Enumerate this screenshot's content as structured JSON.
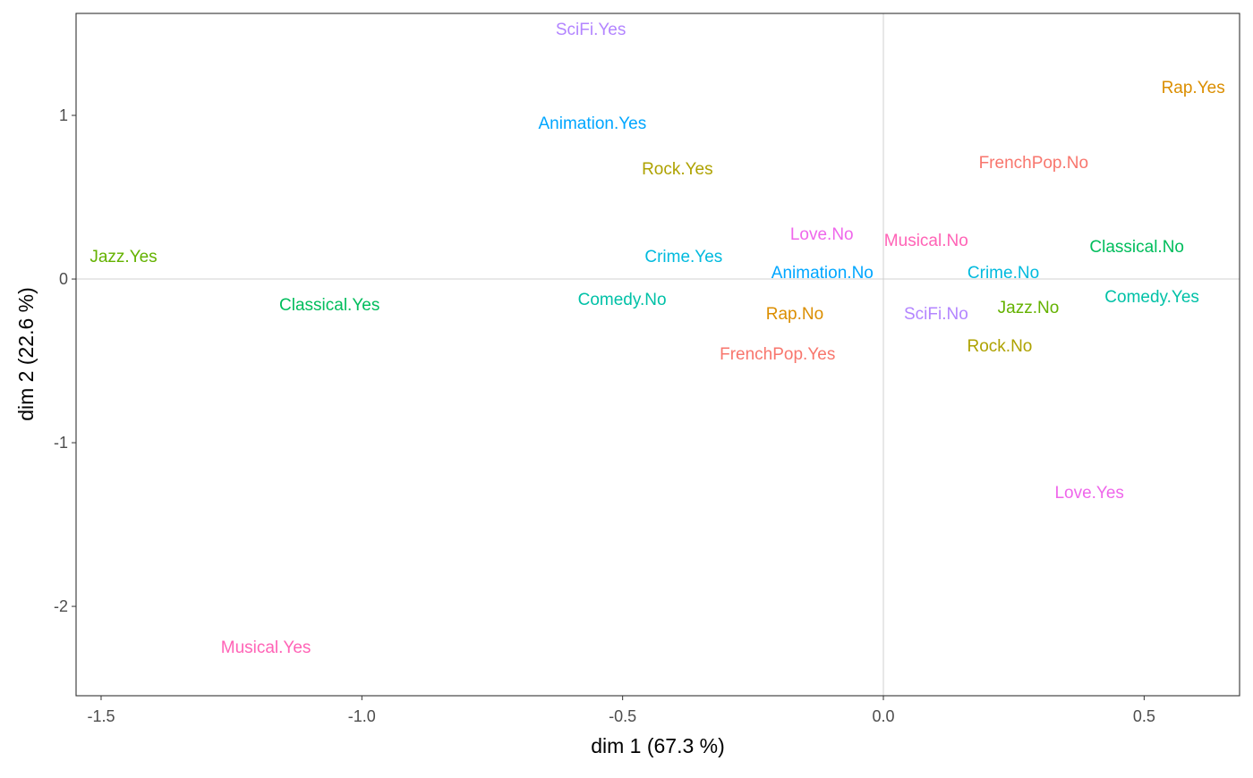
{
  "chart_data": {
    "type": "scatter",
    "title": "",
    "xlabel": "dim 1 (67.3 %)",
    "ylabel": "dim 2 (22.6 %)",
    "xlim": [
      -1.548,
      0.683
    ],
    "ylim": [
      -2.546,
      1.623
    ],
    "xticks": [
      -1.5,
      -1.0,
      -0.5,
      0.0,
      0.5
    ],
    "xtick_labels": [
      "-1.5",
      "-1.0",
      "-0.5",
      "0.0",
      "0.5"
    ],
    "yticks": [
      1,
      0,
      -1,
      -2
    ],
    "ytick_labels": [
      "1",
      "0",
      "-1",
      "-2"
    ],
    "grid": false,
    "reference_lines": {
      "x": 0,
      "y": 0
    },
    "legend": "none",
    "colors": {
      "FrenchPop": "#F8766D",
      "Rap": "#DB8E00",
      "Rock": "#AEA200",
      "Jazz": "#64B200",
      "Classical": "#00BD5C",
      "Comedy": "#00C1A7",
      "Crime": "#00BADE",
      "Animation": "#00A6FF",
      "SciFi": "#B385FF",
      "Love": "#EF67EB",
      "Musical": "#FF63B6"
    },
    "points": [
      {
        "label": "SciFi.Yes",
        "group": "SciFi",
        "x": -0.561,
        "y": 1.53
      },
      {
        "label": "Animation.Yes",
        "group": "Animation",
        "x": -0.558,
        "y": 0.956
      },
      {
        "label": "Rock.Yes",
        "group": "Rock",
        "x": -0.395,
        "y": 0.678
      },
      {
        "label": "Rap.Yes",
        "group": "Rap",
        "x": 0.594,
        "y": 1.175
      },
      {
        "label": "FrenchPop.No",
        "group": "FrenchPop",
        "x": 0.288,
        "y": 0.716
      },
      {
        "label": "Love.No",
        "group": "Love",
        "x": -0.118,
        "y": 0.279
      },
      {
        "label": "Musical.No",
        "group": "Musical",
        "x": 0.082,
        "y": 0.24
      },
      {
        "label": "Classical.No",
        "group": "Classical",
        "x": 0.486,
        "y": 0.202
      },
      {
        "label": "Jazz.Yes",
        "group": "Jazz",
        "x": -1.457,
        "y": 0.142
      },
      {
        "label": "Crime.Yes",
        "group": "Crime",
        "x": -0.383,
        "y": 0.142
      },
      {
        "label": "Animation.No",
        "group": "Animation",
        "x": -0.117,
        "y": 0.044
      },
      {
        "label": "Crime.No",
        "group": "Crime",
        "x": 0.23,
        "y": 0.044
      },
      {
        "label": "Comedy.Yes",
        "group": "Comedy",
        "x": 0.515,
        "y": -0.104
      },
      {
        "label": "Classical.Yes",
        "group": "Classical",
        "x": -1.062,
        "y": -0.153
      },
      {
        "label": "Comedy.No",
        "group": "Comedy",
        "x": -0.501,
        "y": -0.12
      },
      {
        "label": "Rap.No",
        "group": "Rap",
        "x": -0.17,
        "y": -0.208
      },
      {
        "label": "SciFi.No",
        "group": "SciFi",
        "x": 0.101,
        "y": -0.208
      },
      {
        "label": "Jazz.No",
        "group": "Jazz",
        "x": 0.278,
        "y": -0.169
      },
      {
        "label": "Rock.No",
        "group": "Rock",
        "x": 0.223,
        "y": -0.404
      },
      {
        "label": "FrenchPop.Yes",
        "group": "FrenchPop",
        "x": -0.203,
        "y": -0.454
      },
      {
        "label": "Love.Yes",
        "group": "Love",
        "x": 0.395,
        "y": -1.301
      },
      {
        "label": "Musical.Yes",
        "group": "Musical",
        "x": -1.184,
        "y": -2.246
      }
    ]
  }
}
